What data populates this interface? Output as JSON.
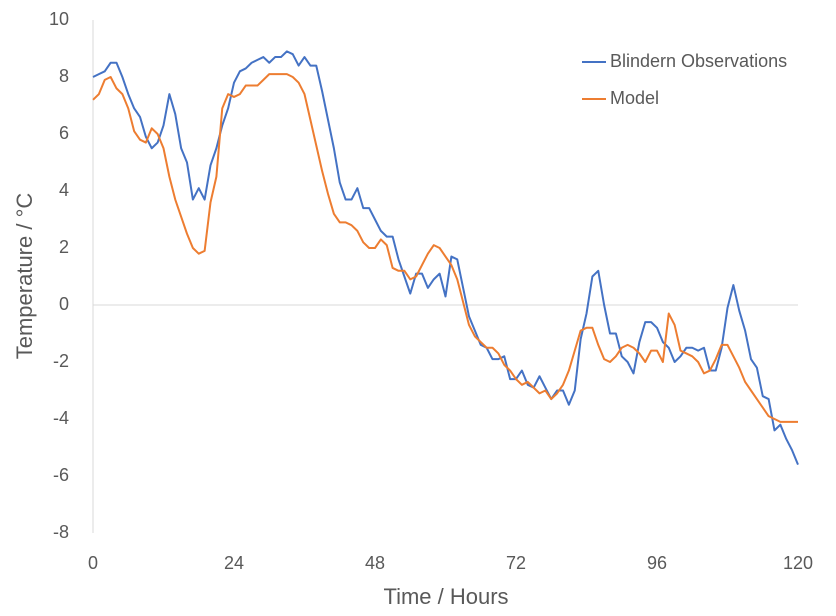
{
  "chart_data": {
    "type": "line",
    "x_label": "Time / Hours",
    "y_label": "Temperature / °C",
    "x": [
      0,
      1,
      2,
      3,
      4,
      5,
      6,
      7,
      8,
      9,
      10,
      11,
      12,
      13,
      14,
      15,
      16,
      17,
      18,
      19,
      20,
      21,
      22,
      23,
      24,
      25,
      26,
      27,
      28,
      29,
      30,
      31,
      32,
      33,
      34,
      35,
      36,
      37,
      38,
      39,
      40,
      41,
      42,
      43,
      44,
      45,
      46,
      47,
      48,
      49,
      50,
      51,
      52,
      53,
      54,
      55,
      56,
      57,
      58,
      59,
      60,
      61,
      62,
      63,
      64,
      65,
      66,
      67,
      68,
      69,
      70,
      71,
      72,
      73,
      74,
      75,
      76,
      77,
      78,
      79,
      80,
      81,
      82,
      83,
      84,
      85,
      86,
      87,
      88,
      89,
      90,
      91,
      92,
      93,
      94,
      95,
      96,
      97,
      98,
      99,
      100,
      101,
      102,
      103,
      104,
      105,
      106,
      107,
      108,
      109,
      110,
      111,
      112,
      113,
      114,
      115,
      116,
      117,
      118,
      119,
      120
    ],
    "series": [
      {
        "name": "Blindern Observations",
        "color": "#4472c4",
        "values": [
          8.0,
          8.1,
          8.2,
          8.5,
          8.5,
          8.0,
          7.4,
          6.9,
          6.6,
          5.9,
          5.5,
          5.7,
          6.3,
          7.4,
          6.7,
          5.5,
          5.0,
          3.7,
          4.1,
          3.7,
          4.9,
          5.5,
          6.3,
          6.9,
          7.8,
          8.2,
          8.3,
          8.5,
          8.6,
          8.7,
          8.5,
          8.7,
          8.7,
          8.9,
          8.8,
          8.4,
          8.7,
          8.4,
          8.4,
          7.5,
          6.5,
          5.5,
          4.3,
          3.7,
          3.7,
          4.1,
          3.4,
          3.4,
          3.0,
          2.6,
          2.4,
          2.4,
          1.6,
          1.0,
          0.4,
          1.1,
          1.1,
          0.6,
          0.9,
          1.1,
          0.3,
          1.7,
          1.6,
          0.6,
          -0.4,
          -0.9,
          -1.4,
          -1.5,
          -1.9,
          -1.9,
          -1.8,
          -2.6,
          -2.6,
          -2.3,
          -2.8,
          -2.9,
          -2.5,
          -2.9,
          -3.3,
          -3.0,
          -3.0,
          -3.5,
          -3.0,
          -1.2,
          -0.3,
          1.0,
          1.2,
          0.0,
          -1.0,
          -1.0,
          -1.8,
          -2.0,
          -2.4,
          -1.3,
          -0.6,
          -0.6,
          -0.8,
          -1.3,
          -1.5,
          -2.0,
          -1.8,
          -1.5,
          -1.5,
          -1.6,
          -1.5,
          -2.3,
          -2.3,
          -1.5,
          -0.1,
          0.7,
          -0.2,
          -0.9,
          -1.9,
          -2.2,
          -3.2,
          -3.3,
          -4.4,
          -4.2,
          -4.7,
          -5.1,
          -5.6
        ]
      },
      {
        "name": "Model",
        "color": "#ed7d31",
        "values": [
          7.2,
          7.4,
          7.9,
          8.0,
          7.6,
          7.4,
          6.9,
          6.1,
          5.8,
          5.7,
          6.2,
          6.0,
          5.5,
          4.5,
          3.7,
          3.1,
          2.5,
          2.0,
          1.8,
          1.9,
          3.6,
          4.5,
          6.9,
          7.4,
          7.3,
          7.4,
          7.7,
          7.7,
          7.7,
          7.9,
          8.1,
          8.1,
          8.1,
          8.1,
          8.0,
          7.8,
          7.4,
          6.5,
          5.6,
          4.7,
          3.9,
          3.2,
          2.9,
          2.9,
          2.8,
          2.6,
          2.2,
          2.0,
          2.0,
          2.3,
          2.1,
          1.3,
          1.2,
          1.2,
          0.9,
          1.0,
          1.4,
          1.8,
          2.1,
          2.0,
          1.7,
          1.4,
          0.9,
          0.1,
          -0.7,
          -1.1,
          -1.3,
          -1.5,
          -1.5,
          -1.7,
          -2.1,
          -2.3,
          -2.6,
          -2.8,
          -2.7,
          -2.9,
          -3.1,
          -3.0,
          -3.3,
          -3.1,
          -2.8,
          -2.3,
          -1.6,
          -0.9,
          -0.8,
          -0.8,
          -1.4,
          -1.9,
          -2.0,
          -1.8,
          -1.5,
          -1.4,
          -1.5,
          -1.7,
          -2.0,
          -1.6,
          -1.6,
          -2.0,
          -0.3,
          -0.7,
          -1.6,
          -1.7,
          -1.8,
          -2.0,
          -2.4,
          -2.3,
          -1.9,
          -1.4,
          -1.4,
          -1.8,
          -2.2,
          -2.7,
          -3.0,
          -3.3,
          -3.6,
          -3.9,
          -4.0,
          -4.1,
          -4.1,
          -4.1,
          -4.1
        ]
      }
    ],
    "xlim": [
      0,
      120
    ],
    "xticks": [
      0,
      24,
      48,
      72,
      96,
      120
    ],
    "ylim": [
      -8,
      10
    ],
    "yticks": [
      -8,
      -6,
      -4,
      -2,
      0,
      2,
      4,
      6,
      8,
      10
    ],
    "grid": false,
    "legend": "upper right"
  }
}
